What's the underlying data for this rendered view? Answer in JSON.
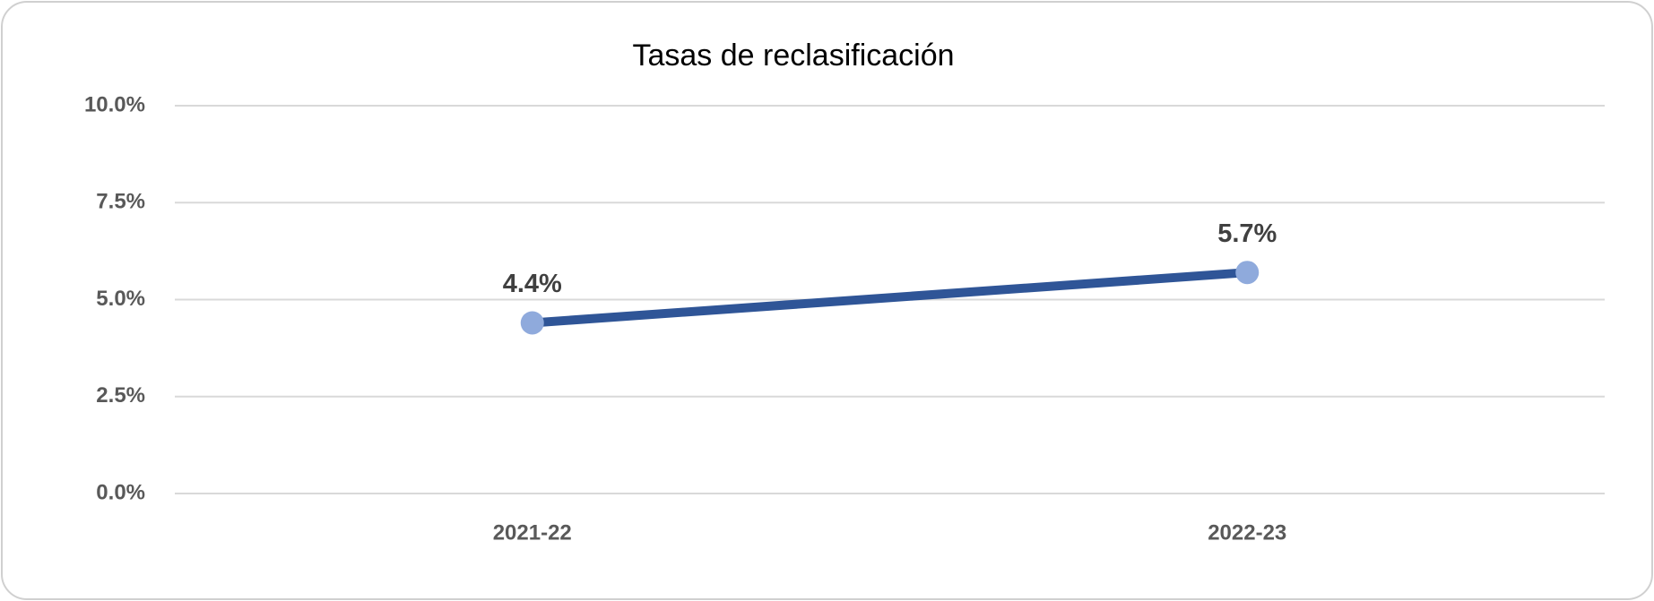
{
  "chart_data": {
    "type": "line",
    "title": "Tasas de reclasificación",
    "categories": [
      "2021-22",
      "2022-23"
    ],
    "series": [
      {
        "name": "Tasas de reclasificación",
        "color": "#2f5597",
        "marker_color": "#8faadc",
        "values": [
          4.4,
          5.7
        ],
        "value_labels": [
          "4.4%",
          "5.7%"
        ]
      }
    ],
    "ylim": [
      0,
      10
    ],
    "yticks": [
      {
        "value": 0,
        "label": "0.0%"
      },
      {
        "value": 2.5,
        "label": "2.5%"
      },
      {
        "value": 5,
        "label": "5.0%"
      },
      {
        "value": 7.5,
        "label": "7.5%"
      },
      {
        "value": 10,
        "label": "10.0%"
      }
    ],
    "grid": true
  }
}
